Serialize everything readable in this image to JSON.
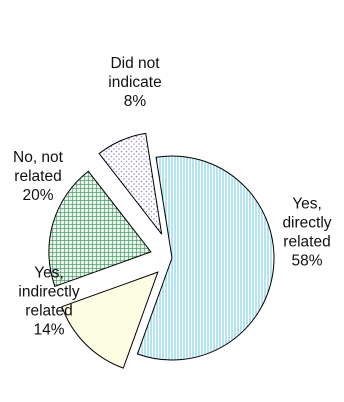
{
  "chart_data": {
    "type": "pie",
    "slices": [
      {
        "label_lines": [
          "Yes,",
          "directly",
          "related"
        ],
        "pct_label": "58%",
        "value": 58,
        "fill": "#ffffff",
        "accent": "#79cfe6",
        "pattern": "vertical-lines"
      },
      {
        "label_lines": [
          "Yes,",
          "indirectly",
          "related"
        ],
        "pct_label": "14%",
        "value": 14,
        "fill": "#fdfde4",
        "accent": "#fdfde4",
        "pattern": "solid"
      },
      {
        "label_lines": [
          "No, not",
          "related"
        ],
        "pct_label": "20%",
        "value": 20,
        "fill": "#ffffff",
        "accent": "#3e8f5a",
        "pattern": "crosshatch"
      },
      {
        "label_lines": [
          "Did not",
          "indicate"
        ],
        "pct_label": "8%",
        "value": 8,
        "fill": "#ffffff",
        "accent": "#9a8ad0",
        "pattern": "dots"
      }
    ],
    "exploded": true,
    "legend": "none"
  }
}
